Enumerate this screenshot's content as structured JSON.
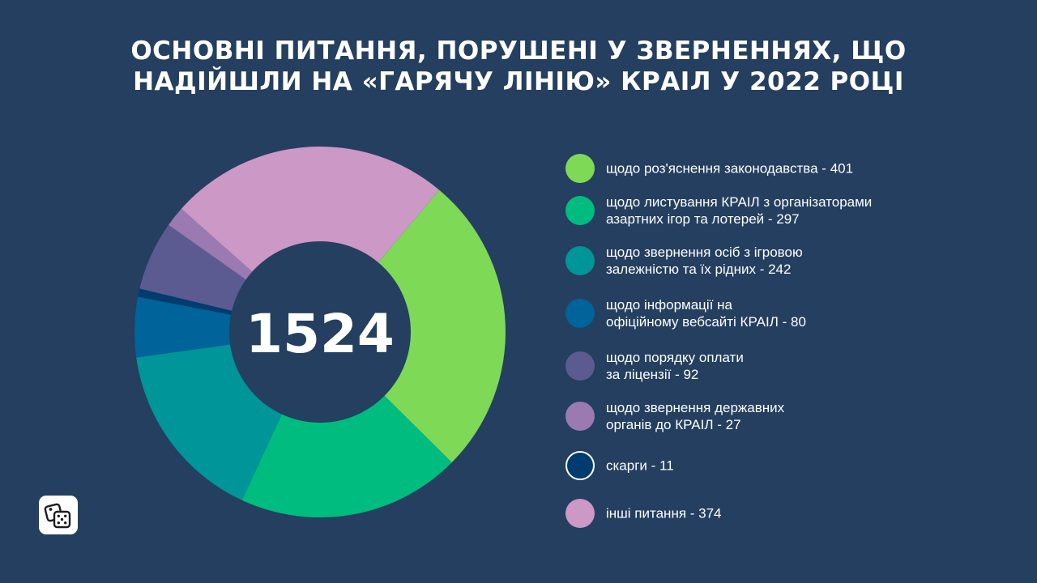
{
  "header": {
    "title_lines": [
      "ОСНОВНІ ПИТАННЯ, ПОРУШЕНІ У ЗВЕРНЕННЯХ, ЩО",
      "НАДІЙШЛИ НА «ГАРЯЧУ ЛІНІЮ» КРАІЛ У 2022 РОЦІ"
    ]
  },
  "logo": {
    "icon": "dice-icon"
  },
  "chart_data": {
    "type": "pie",
    "title": "ОСНОВНІ ПИТАННЯ, ПОРУШЕНІ У ЗВЕРНЕННЯХ, ЩО НАДІЙШЛИ НА «ГАРЯЧУ ЛІНІЮ» КРАІЛ У 2022 РОЦІ",
    "total": "1524",
    "legend_position": "right",
    "slices": [
      {
        "value": 401,
        "color": "#7ed957",
        "label_lines": [
          "щодо роз'яснення законодавства - 401"
        ]
      },
      {
        "value": 297,
        "color": "#00bc7f",
        "label_lines": [
          "щодо листування КРАІЛ з організаторами",
          "азартних ігор та лотерей - 297"
        ]
      },
      {
        "value": 242,
        "color": "#009598",
        "label_lines": [
          "щодо звернення осіб з ігровою",
          "залежністю та їх рідних - 242"
        ]
      },
      {
        "value": 80,
        "color": "#00639a",
        "label_lines": [
          "щодо інформації на",
          "офіційному вебсайті КРАІЛ - 80"
        ]
      },
      {
        "value": 11,
        "color": "#003c6f",
        "label_lines": [
          "скарги - 11"
        ]
      },
      {
        "value": 92,
        "color": "#5b5b92",
        "label_lines": [
          "щодо порядку оплати",
          "за ліцензії - 92"
        ]
      },
      {
        "value": 27,
        "color": "#9b79b1",
        "label_lines": [
          "щодо звернення державних",
          "органів до КРАІЛ - 27"
        ]
      },
      {
        "value": 374,
        "color": "#cc98c5",
        "label_lines": [
          "інші питання - 374"
        ]
      }
    ],
    "legend_order": [
      0,
      1,
      2,
      3,
      5,
      6,
      4,
      7
    ]
  }
}
